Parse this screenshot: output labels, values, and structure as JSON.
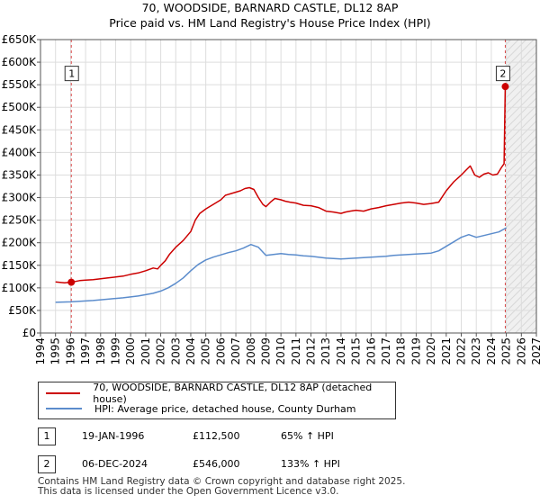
{
  "header": {
    "title": "70, WOODSIDE, BARNARD CASTLE, DL12 8AP",
    "subtitle": "Price paid vs. HM Land Registry's House Price Index (HPI)"
  },
  "chart_data": {
    "type": "line",
    "title": "70, WOODSIDE, BARNARD CASTLE, DL12 8AP",
    "subtitle": "Price paid vs. HM Land Registry's House Price Index (HPI)",
    "xlim": [
      1994,
      2027
    ],
    "ylim": [
      0,
      650000
    ],
    "xticks": [
      1994,
      1995,
      1996,
      1997,
      1998,
      1999,
      2000,
      2001,
      2002,
      2003,
      2004,
      2005,
      2006,
      2007,
      2008,
      2009,
      2010,
      2011,
      2012,
      2013,
      2014,
      2015,
      2016,
      2017,
      2018,
      2019,
      2020,
      2021,
      2022,
      2023,
      2024,
      2025,
      2026,
      2027
    ],
    "xtick_labels": [
      "1994",
      "1995",
      "1996",
      "1997",
      "1998",
      "1999",
      "2000",
      "2001",
      "2002",
      "2003",
      "2004",
      "2005",
      "2006",
      "2007",
      "2008",
      "2009",
      "2010",
      "2011",
      "2012",
      "2013",
      "2014",
      "2015",
      "2016",
      "2017",
      "2018",
      "2019",
      "2020",
      "2021",
      "2022",
      "2023",
      "2024",
      "2025",
      "2026",
      "2027"
    ],
    "yticks": [
      0,
      50000,
      100000,
      150000,
      200000,
      250000,
      300000,
      350000,
      400000,
      450000,
      500000,
      550000,
      600000,
      650000
    ],
    "ytick_labels": [
      "£0",
      "£50K",
      "£100K",
      "£150K",
      "£200K",
      "£250K",
      "£300K",
      "£350K",
      "£400K",
      "£450K",
      "£500K",
      "£550K",
      "£600K",
      "£650K"
    ],
    "grid": true,
    "series": [
      {
        "name": "70, WOODSIDE, BARNARD CASTLE, DL12 8AP (detached house)",
        "color": "#cc0000",
        "x": [
          1995.0,
          1995.3,
          1995.6,
          1995.9,
          1996.05,
          1996.3,
          1996.6,
          1997.0,
          1997.5,
          1998.0,
          1998.5,
          1999.0,
          1999.5,
          2000.0,
          2000.5,
          2001.0,
          2001.5,
          2001.8,
          2002.0,
          2002.3,
          2002.6,
          2003.0,
          2003.5,
          2004.0,
          2004.3,
          2004.6,
          2005.0,
          2005.5,
          2006.0,
          2006.3,
          2006.6,
          2007.0,
          2007.3,
          2007.6,
          2007.9,
          2008.2,
          2008.5,
          2008.8,
          2009.0,
          2009.3,
          2009.6,
          2010.0,
          2010.3,
          2010.6,
          2011.0,
          2011.5,
          2012.0,
          2012.5,
          2013.0,
          2013.5,
          2014.0,
          2014.3,
          2014.6,
          2015.0,
          2015.5,
          2016.0,
          2016.5,
          2017.0,
          2017.5,
          2018.0,
          2018.5,
          2019.0,
          2019.5,
          2020.0,
          2020.5,
          2021.0,
          2021.5,
          2022.0,
          2022.3,
          2022.6,
          2022.9,
          2023.2,
          2023.5,
          2023.8,
          2024.1,
          2024.4,
          2024.7,
          2024.85,
          2024.93
        ],
        "values": [
          113000,
          112000,
          111000,
          112000,
          112500,
          114000,
          116000,
          117000,
          118000,
          120000,
          122000,
          124000,
          126000,
          130000,
          133000,
          138000,
          144000,
          142000,
          150000,
          160000,
          175000,
          190000,
          205000,
          225000,
          250000,
          265000,
          275000,
          285000,
          295000,
          305000,
          308000,
          312000,
          315000,
          320000,
          322000,
          318000,
          300000,
          285000,
          280000,
          290000,
          298000,
          295000,
          292000,
          290000,
          288000,
          283000,
          282000,
          278000,
          270000,
          268000,
          265000,
          268000,
          270000,
          272000,
          270000,
          275000,
          278000,
          282000,
          285000,
          288000,
          290000,
          288000,
          285000,
          287000,
          290000,
          315000,
          335000,
          350000,
          360000,
          370000,
          350000,
          345000,
          352000,
          355000,
          350000,
          352000,
          368000,
          375000,
          546000
        ]
      },
      {
        "name": "HPI: Average price, detached house, County Durham",
        "color": "#5b8ccc",
        "x": [
          1995.0,
          1995.5,
          1996.0,
          1996.5,
          1997.0,
          1997.5,
          1998.0,
          1998.5,
          1999.0,
          1999.5,
          2000.0,
          2000.5,
          2001.0,
          2001.5,
          2002.0,
          2002.5,
          2003.0,
          2003.5,
          2004.0,
          2004.5,
          2005.0,
          2005.5,
          2006.0,
          2006.5,
          2007.0,
          2007.5,
          2008.0,
          2008.5,
          2009.0,
          2009.5,
          2010.0,
          2010.5,
          2011.0,
          2011.5,
          2012.0,
          2012.5,
          2013.0,
          2013.5,
          2014.0,
          2014.5,
          2015.0,
          2015.5,
          2016.0,
          2016.5,
          2017.0,
          2017.5,
          2018.0,
          2018.5,
          2019.0,
          2019.5,
          2020.0,
          2020.5,
          2021.0,
          2021.5,
          2022.0,
          2022.5,
          2023.0,
          2023.5,
          2024.0,
          2024.5,
          2025.0
        ],
        "values": [
          68000,
          68500,
          69000,
          70000,
          71000,
          72000,
          73500,
          75000,
          76500,
          78000,
          80000,
          82000,
          85000,
          88000,
          93000,
          100000,
          110000,
          122000,
          138000,
          152000,
          162000,
          168000,
          173000,
          178000,
          182000,
          188000,
          196000,
          190000,
          172000,
          174000,
          176000,
          174000,
          173000,
          171000,
          170000,
          168000,
          166000,
          165000,
          164000,
          165000,
          166000,
          167000,
          168000,
          169000,
          170000,
          172000,
          173000,
          174000,
          175000,
          176000,
          177000,
          182000,
          192000,
          202000,
          212000,
          218000,
          212000,
          216000,
          220000,
          224000,
          233000
        ]
      }
    ],
    "sales": [
      {
        "id": "1",
        "date": "19-JAN-1996",
        "price": "£112,500",
        "hpi": "65% ↑ HPI",
        "x": 1996.05,
        "value": 112500
      },
      {
        "id": "2",
        "date": "06-DEC-2024",
        "price": "£546,000",
        "hpi": "133% ↑ HPI",
        "x": 2024.93,
        "value": 546000
      }
    ],
    "marker_box_value": 575000
  },
  "legend": {
    "items": [
      {
        "label": "70, WOODSIDE, BARNARD CASTLE, DL12 8AP (detached house)",
        "color": "#cc0000"
      },
      {
        "label": "HPI: Average price, detached house, County Durham",
        "color": "#5b8ccc"
      }
    ]
  },
  "footer": {
    "line1": "Contains HM Land Registry data © Crown copyright and database right 2025.",
    "line2": "This data is licensed under the Open Government Licence v3.0."
  }
}
